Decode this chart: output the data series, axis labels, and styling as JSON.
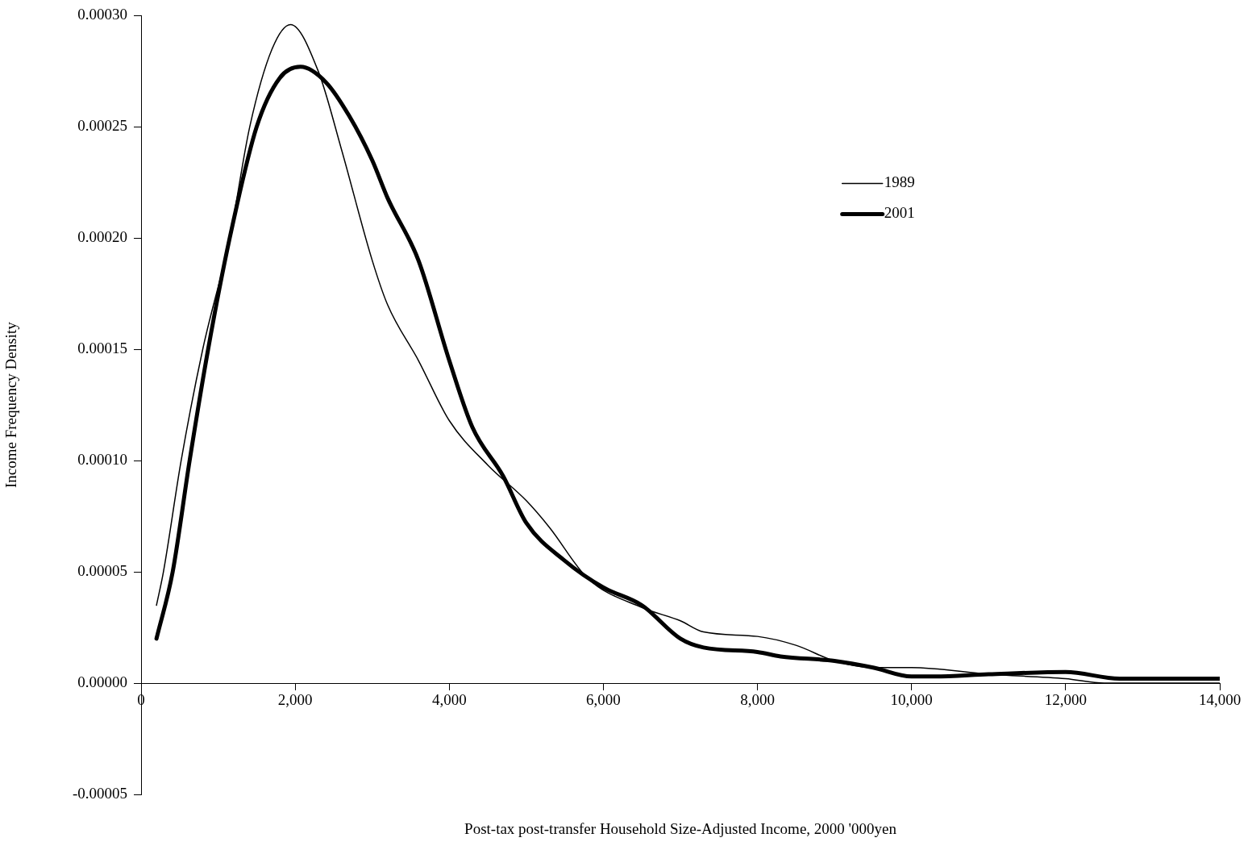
{
  "chart_data": {
    "type": "line",
    "xlabel": "Post-tax post-transfer Household Size-Adjusted Income, 2000 '000yen",
    "ylabel": "Income Frequency Density",
    "xlim": [
      0,
      14000
    ],
    "xticks": [
      0,
      {
        "value": 2000,
        "label": "2,000"
      },
      {
        "value": 4000,
        "label": "4,000"
      },
      {
        "value": 6000,
        "label": "6,000"
      },
      {
        "value": 8000,
        "label": "8,000"
      },
      {
        "value": 10000,
        "label": "10,000"
      },
      {
        "value": 12000,
        "label": "12,000"
      },
      {
        "value": 14000,
        "label": "14,000"
      }
    ],
    "ylim": [
      -5e-05,
      0.0003
    ],
    "yticks": [
      {
        "value": -5e-05,
        "label": "-0.00005"
      },
      {
        "value": 0,
        "label": "0.00000"
      },
      {
        "value": 5e-05,
        "label": "0.00005"
      },
      {
        "value": 0.0001,
        "label": "0.00010"
      },
      {
        "value": 0.00015,
        "label": "0.00015"
      },
      {
        "value": 0.0002,
        "label": "0.00020"
      },
      {
        "value": 0.00025,
        "label": "0.00025"
      },
      {
        "value": 0.0003,
        "label": "0.00030"
      }
    ],
    "legend": "top right",
    "marker": "none",
    "line_style": "solid",
    "series": [
      {
        "name": "1989",
        "color": "#000000",
        "x": [
          200,
          290,
          520,
          800,
          1150,
          1410,
          1700,
          1940,
          2300,
          2600,
          3000,
          3200,
          3600,
          4000,
          4500,
          5000,
          5300,
          5800,
          6500,
          7000,
          7300,
          8000,
          8500,
          9000,
          9500,
          10000,
          11000,
          12000,
          12500,
          14000
        ],
        "values": [
          3.5e-05,
          5e-05,
          0.0001,
          0.00015,
          0.0002,
          0.00025,
          0.000285,
          0.000296,
          0.000275,
          0.00024,
          0.00019,
          0.00017,
          0.000145,
          0.000118,
          9.8e-05,
          8.2e-05,
          7e-05,
          4.7e-05,
          3.4e-05,
          2.8e-05,
          2.3e-05,
          2.1e-05,
          1.7e-05,
          1e-05,
          7e-06,
          7e-06,
          4e-06,
          2e-06,
          0,
          0
        ]
      },
      {
        "name": "2001",
        "color": "#000000",
        "x": [
          200,
          410,
          630,
          870,
          1150,
          1500,
          1800,
          2070,
          2400,
          2700,
          3000,
          3200,
          3600,
          4000,
          4300,
          4700,
          5000,
          5500,
          6000,
          6500,
          7000,
          7300,
          8000,
          8300,
          9000,
          9500,
          10000,
          10300,
          11000,
          12000,
          12700,
          14000
        ],
        "values": [
          2e-05,
          5e-05,
          0.0001,
          0.00015,
          0.0002,
          0.00025,
          0.000272,
          0.000277,
          0.00027,
          0.000255,
          0.000235,
          0.000218,
          0.00019,
          0.000145,
          0.000115,
          9.3e-05,
          7.2e-05,
          5.5e-05,
          4.3e-05,
          3.5e-05,
          2e-05,
          1.6e-05,
          1.4e-05,
          1.2e-05,
          1e-05,
          7e-06,
          3e-06,
          3e-06,
          4e-06,
          5e-06,
          2e-06,
          2e-06
        ]
      }
    ]
  }
}
